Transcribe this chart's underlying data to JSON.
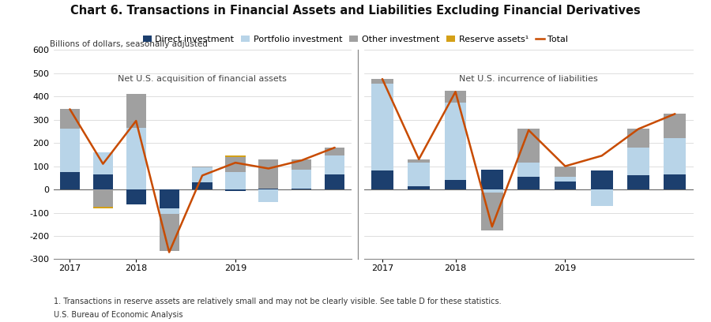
{
  "title": "Chart 6. Transactions in Financial Assets and Liabilities Excluding Financial Derivatives",
  "ylabel": "Billions of dollars, seasonally adjusted",
  "footnote1": "1. Transactions in reserve assets are relatively small and may not be clearly visible. See table D for these statistics.",
  "footnote2": "U.S. Bureau of Economic Analysis",
  "ylim": [
    -300,
    600
  ],
  "yticks": [
    -300,
    -200,
    -100,
    0,
    100,
    200,
    300,
    400,
    500,
    600
  ],
  "colors": {
    "direct": "#1C3F6E",
    "portfolio": "#B8D4E8",
    "other": "#A0A0A0",
    "reserve": "#D4A017",
    "total_line": "#C84B00"
  },
  "left_panel_title": "Net U.S. acquisition of financial assets",
  "right_panel_title": "Net U.S. incurrence of liabilities",
  "left_direct": [
    75,
    65,
    -65,
    -80,
    30,
    -5,
    5,
    5,
    65
  ],
  "left_portfolio": [
    185,
    95,
    265,
    -25,
    65,
    75,
    -55,
    80,
    80
  ],
  "left_other": [
    85,
    -75,
    145,
    -160,
    5,
    65,
    125,
    45,
    35
  ],
  "left_reserve": [
    0,
    -5,
    0,
    0,
    0,
    5,
    0,
    0,
    0
  ],
  "left_total": [
    345,
    110,
    295,
    -270,
    60,
    115,
    90,
    125,
    180
  ],
  "right_direct": [
    80,
    15,
    40,
    85,
    55,
    35,
    80,
    60,
    65
  ],
  "right_portfolio": [
    375,
    100,
    335,
    -15,
    60,
    20,
    -70,
    120,
    155
  ],
  "right_other": [
    20,
    15,
    50,
    -160,
    145,
    45,
    0,
    80,
    105
  ],
  "right_reserve": [
    0,
    0,
    0,
    0,
    0,
    0,
    0,
    0,
    0
  ],
  "right_total": [
    475,
    130,
    420,
    -160,
    255,
    100,
    145,
    260,
    325
  ],
  "left_xtick_pos": [
    0,
    2,
    5
  ],
  "left_xtick_labels": [
    "2017",
    "2018",
    "2019"
  ],
  "right_xtick_pos": [
    0,
    2,
    5
  ],
  "right_xtick_labels": [
    "2017",
    "2018",
    "2019"
  ],
  "legend_entries": [
    "Direct investment",
    "Portfolio investment",
    "Other investment",
    "Reserve assets¹",
    "Total"
  ]
}
